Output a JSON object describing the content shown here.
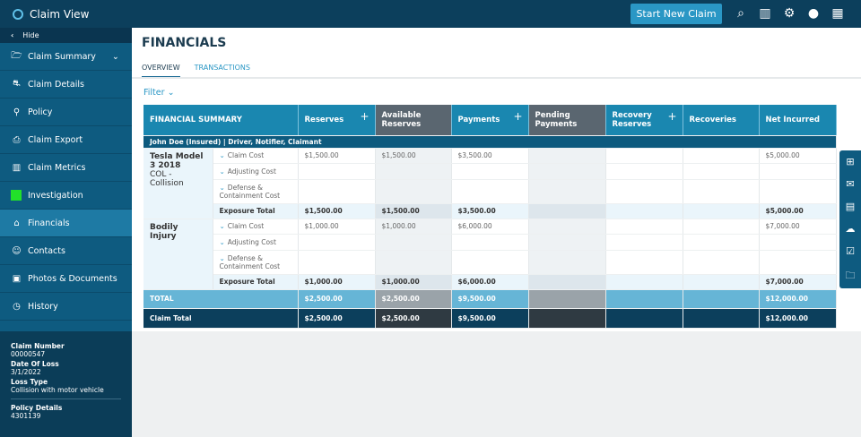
{
  "app": {
    "title": "Claim View",
    "start_button": "Start New Claim",
    "icons": [
      "search-icon",
      "chart-icon",
      "gear-icon",
      "user-icon",
      "grid-icon"
    ]
  },
  "sidebar": {
    "hide": "Hide",
    "items": [
      {
        "label": "Claim Summary",
        "icon": "folder-open-icon"
      },
      {
        "label": "Claim Details",
        "icon": "car-icon"
      },
      {
        "label": "Policy",
        "icon": "policy-icon"
      },
      {
        "label": "Claim Export",
        "icon": "export-icon"
      },
      {
        "label": "Claim Metrics",
        "icon": "bar-chart-icon"
      },
      {
        "label": "Investigation",
        "icon": "green-square-icon"
      },
      {
        "label": "Financials",
        "icon": "bank-icon"
      },
      {
        "label": "Contacts",
        "icon": "contacts-icon"
      },
      {
        "label": "Photos & Documents",
        "icon": "photos-icon"
      },
      {
        "label": "History",
        "icon": "clock-icon"
      }
    ],
    "selected": "Financials",
    "info": [
      {
        "label": "Claim Number",
        "value": "00000547"
      },
      {
        "label": "Date Of Loss",
        "value": "3/1/2022"
      },
      {
        "label": "Loss Type",
        "value": "Collision with motor vehicle"
      },
      {
        "label": "Policy Details",
        "value": "4301139"
      }
    ]
  },
  "main": {
    "title": "FINANCIALS",
    "tabs": [
      "OVERVIEW",
      "TRANSACTIONS"
    ],
    "active_tab": "OVERVIEW",
    "filter": "Filter"
  },
  "table": {
    "headers": [
      "FINANCIAL SUMMARY",
      "Reserves",
      "Available Reserves",
      "Payments",
      "Pending Payments",
      "Recovery Reserves",
      "Recoveries",
      "Net Incurred"
    ],
    "party": "John Doe (Insured) | Driver, Notifier, Claimant",
    "exposures": [
      {
        "name": "Tesla Model 3 2018",
        "sub": "COL - Collision",
        "lines": [
          {
            "label": "Claim Cost",
            "values": [
              "$1,500.00",
              "$1,500.00",
              "$3,500.00",
              "",
              "",
              "",
              "$5,000.00"
            ]
          },
          {
            "label": "Adjusting Cost",
            "values": [
              "",
              "",
              "",
              "",
              "",
              "",
              ""
            ]
          },
          {
            "label": "Defense & Containment Cost",
            "values": [
              "",
              "",
              "",
              "",
              "",
              "",
              ""
            ]
          }
        ],
        "total_label": "Exposure Total",
        "total": [
          "$1,500.00",
          "$1,500.00",
          "$3,500.00",
          "",
          "",
          "",
          "$5,000.00"
        ]
      },
      {
        "name": "Bodily Injury",
        "sub": "",
        "lines": [
          {
            "label": "Claim Cost",
            "values": [
              "$1,000.00",
              "$1,000.00",
              "$6,000.00",
              "",
              "",
              "",
              "$7,000.00"
            ]
          },
          {
            "label": "Adjusting Cost",
            "values": [
              "",
              "",
              "",
              "",
              "",
              "",
              ""
            ]
          },
          {
            "label": "Defense & Containment Cost",
            "values": [
              "",
              "",
              "",
              "",
              "",
              "",
              ""
            ]
          }
        ],
        "total_label": "Exposure Total",
        "total": [
          "$1,000.00",
          "$1,000.00",
          "$6,000.00",
          "",
          "",
          "",
          "$7,000.00"
        ]
      }
    ],
    "total": {
      "label": "TOTAL",
      "values": [
        "$2,500.00",
        "$2,500.00",
        "$9,500.00",
        "",
        "",
        "",
        "$12,000.00"
      ]
    },
    "claim_total": {
      "label": "Claim Total",
      "values": [
        "$2,500.00",
        "$2,500.00",
        "$9,500.00",
        "",
        "",
        "",
        "$12,000.00"
      ]
    }
  },
  "right_panel": [
    "add-note-icon",
    "mail-icon",
    "document-icon",
    "chat-icon",
    "clipboard-check-icon",
    "folder-icon"
  ]
}
